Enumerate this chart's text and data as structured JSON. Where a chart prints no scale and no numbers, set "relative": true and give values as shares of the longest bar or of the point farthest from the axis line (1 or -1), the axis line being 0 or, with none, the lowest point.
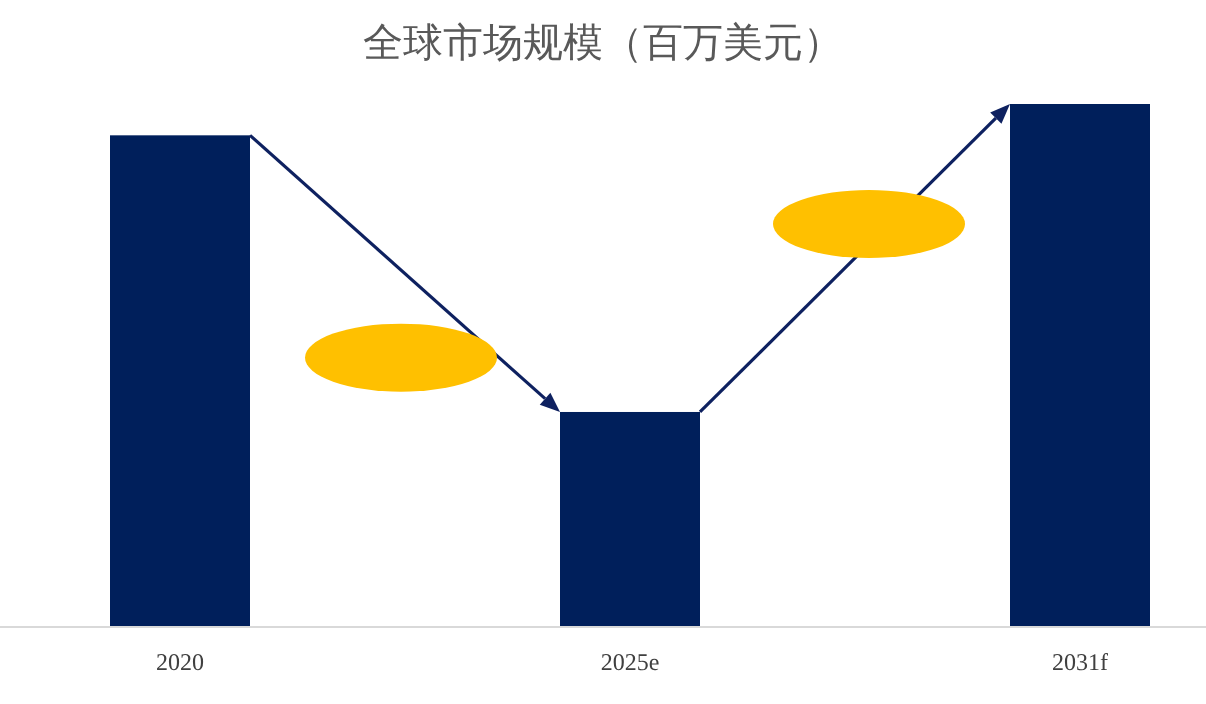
{
  "chart_data": {
    "type": "bar",
    "title": "全球市场规模（百万美元）",
    "relative": true,
    "categories": [
      "2020",
      "2025e",
      "2031f"
    ],
    "values": [
      0.94,
      0.41,
      1
    ],
    "color": "#001f5b"
  }
}
